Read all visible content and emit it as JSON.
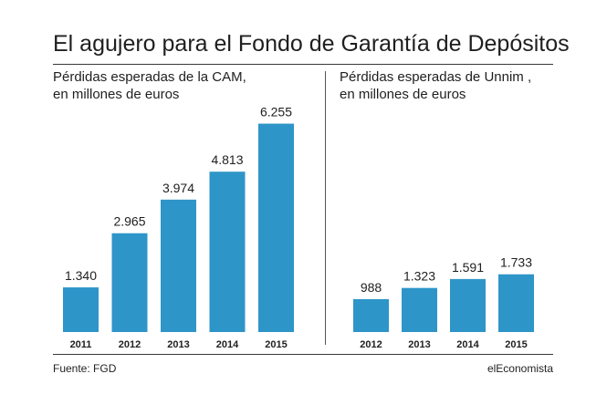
{
  "title": "El agujero para el Fondo de Garantía de Depósitos",
  "colors": {
    "bar": "#2e95c8",
    "text": "#1f1f1f",
    "rule": "#3a3a3a"
  },
  "chart_data": [
    {
      "type": "bar",
      "subtitle_line1": "Pérdidas esperadas de la CAM,",
      "subtitle_line2": "en millones de euros",
      "categories": [
        "2011",
        "2012",
        "2013",
        "2014",
        "2015"
      ],
      "values": [
        1340,
        2965,
        3974,
        4813,
        6255
      ],
      "value_labels": [
        "1.340",
        "2.965",
        "3.974",
        "4.813",
        "6.255"
      ],
      "ylim": [
        0,
        6900
      ],
      "grid": false
    },
    {
      "type": "bar",
      "subtitle_line1": "Pérdidas esperadas de Unnim ,",
      "subtitle_line2": "en millones de euros",
      "categories": [
        "2012",
        "2013",
        "2014",
        "2015"
      ],
      "values": [
        988,
        1323,
        1591,
        1733
      ],
      "value_labels": [
        "988",
        "1.323",
        "1.591",
        "1.733"
      ],
      "ylim": [
        0,
        6900
      ],
      "grid": false
    }
  ],
  "footer": {
    "source": "Fuente: FGD",
    "brand": "elEconomista"
  }
}
